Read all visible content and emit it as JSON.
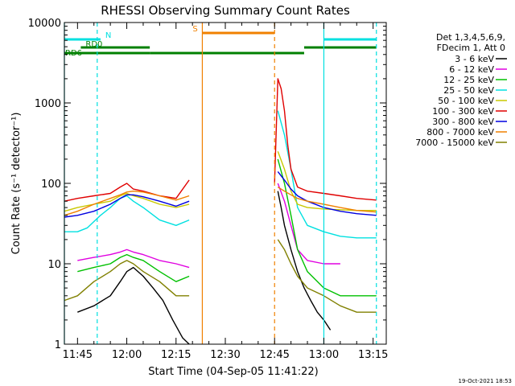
{
  "chart_data": {
    "type": "line",
    "title": "RHESSI Observing Summary Count Rates",
    "xlabel": "Start Time (04-Sep-05 11:41:22)",
    "ylabel": "Count Rate (s⁻¹ detector⁻¹)",
    "yscale": "log",
    "xlim": [
      "11:41",
      "13:19"
    ],
    "ylim": [
      1,
      10000
    ],
    "xticks": [
      "11:45",
      "12:00",
      "12:15",
      "12:30",
      "12:45",
      "13:00",
      "13:15"
    ],
    "yticks": [
      "1",
      "10",
      "100",
      "1000",
      "10000"
    ],
    "legend": {
      "header": [
        "Det 1,3,4,5,6,9,",
        "FDecim 1, Att 0"
      ],
      "placement": "right"
    },
    "series": [
      {
        "name": "3 - 6 keV",
        "color": "#000000",
        "segments": [
          {
            "x": [
              "11:45",
              "11:50",
              "11:55",
              "11:58",
              "12:00",
              "12:02",
              "12:05",
              "12:08",
              "12:11",
              "12:14",
              "12:17",
              "12:19"
            ],
            "y": [
              2.5,
              3,
              4,
              6,
              8,
              9,
              7,
              5,
              3.5,
              2,
              1.2,
              1
            ]
          },
          {
            "x": [
              "12:46",
              "12:47",
              "12:48",
              "12:50",
              "12:52",
              "12:54",
              "12:56",
              "12:58",
              "13:00",
              "13:02"
            ],
            "y": [
              80,
              50,
              30,
              15,
              8,
              5,
              3.5,
              2.5,
              2,
              1.5
            ]
          }
        ]
      },
      {
        "name": "6 - 12 keV",
        "color": "#e000e0",
        "segments": [
          {
            "x": [
              "11:45",
              "11:50",
              "11:55",
              "11:58",
              "12:00",
              "12:02",
              "12:05",
              "12:10",
              "12:15",
              "12:19"
            ],
            "y": [
              11,
              12,
              13,
              14,
              15,
              14,
              13,
              11,
              10,
              9
            ]
          },
          {
            "x": [
              "12:46",
              "12:48",
              "12:50",
              "12:52",
              "12:55",
              "13:00",
              "13:05"
            ],
            "y": [
              100,
              60,
              30,
              15,
              11,
              10,
              10
            ]
          }
        ]
      },
      {
        "name": "12 - 25 keV",
        "color": "#00c000",
        "segments": [
          {
            "x": [
              "11:45",
              "11:50",
              "11:55",
              "11:58",
              "12:00",
              "12:02",
              "12:05",
              "12:10",
              "12:15",
              "12:19"
            ],
            "y": [
              8,
              9,
              10,
              12,
              13,
              12,
              11,
              8,
              6,
              7
            ]
          },
          {
            "x": [
              "12:46",
              "12:48",
              "12:50",
              "12:52",
              "12:55",
              "13:00",
              "13:05",
              "13:10",
              "13:16"
            ],
            "y": [
              200,
              100,
              40,
              15,
              8,
              5,
              4,
              4,
              4
            ]
          }
        ]
      },
      {
        "name": "25 - 50 keV",
        "color": "#00e0e0",
        "segments": [
          {
            "x": [
              "11:41",
              "11:45",
              "11:48",
              "11:52",
              "11:55",
              "11:58",
              "12:00",
              "12:02",
              "12:05",
              "12:10",
              "12:15",
              "12:19"
            ],
            "y": [
              25,
              25,
              28,
              40,
              50,
              65,
              70,
              60,
              50,
              35,
              30,
              35
            ]
          },
          {
            "x": [
              "12:46",
              "12:48",
              "12:50",
              "12:52",
              "12:55",
              "13:00",
              "13:05",
              "13:10",
              "13:16"
            ],
            "y": [
              800,
              400,
              150,
              50,
              30,
              25,
              22,
              21,
              21
            ]
          }
        ]
      },
      {
        "name": "50 - 100 keV",
        "color": "#c8c800",
        "segments": [
          {
            "x": [
              "11:41",
              "11:45",
              "11:50",
              "11:55",
              "11:58",
              "12:00",
              "12:02",
              "12:05",
              "12:10",
              "12:15",
              "12:19"
            ],
            "y": [
              45,
              50,
              55,
              60,
              70,
              75,
              70,
              65,
              55,
              50,
              55
            ]
          },
          {
            "x": [
              "12:46",
              "12:48",
              "12:50",
              "12:52",
              "12:55",
              "13:00",
              "13:05",
              "13:10",
              "13:16"
            ],
            "y": [
              250,
              150,
              80,
              55,
              50,
              48,
              47,
              46,
              46
            ]
          }
        ]
      },
      {
        "name": "100 - 300 keV",
        "color": "#e00000",
        "segments": [
          {
            "x": [
              "11:41",
              "11:45",
              "11:50",
              "11:55",
              "11:58",
              "12:00",
              "12:02",
              "12:05",
              "12:10",
              "12:15",
              "12:19"
            ],
            "y": [
              60,
              65,
              70,
              75,
              90,
              100,
              85,
              80,
              70,
              65,
              110
            ]
          },
          {
            "x": [
              "12:45",
              "12:46",
              "12:47",
              "12:48",
              "12:49",
              "12:50",
              "12:52",
              "12:55",
              "13:00",
              "13:05",
              "13:10",
              "13:16"
            ],
            "y": [
              100,
              2000,
              1500,
              800,
              300,
              150,
              90,
              80,
              75,
              70,
              65,
              62
            ]
          }
        ]
      },
      {
        "name": "300 - 800 keV",
        "color": "#0000e0",
        "segments": [
          {
            "x": [
              "11:41",
              "11:45",
              "11:50",
              "11:55",
              "11:58",
              "12:00",
              "12:02",
              "12:05",
              "12:10",
              "12:15",
              "12:19"
            ],
            "y": [
              38,
              40,
              45,
              55,
              65,
              72,
              72,
              68,
              60,
              52,
              60
            ]
          },
          {
            "x": [
              "12:46",
              "12:48",
              "12:50",
              "12:52",
              "12:55",
              "13:00",
              "13:05",
              "13:10",
              "13:16"
            ],
            "y": [
              140,
              110,
              85,
              70,
              60,
              50,
              45,
              42,
              40
            ]
          }
        ]
      },
      {
        "name": "800 - 7000 keV",
        "color": "#f08000",
        "segments": [
          {
            "x": [
              "11:41",
              "11:45",
              "11:50",
              "11:55",
              "11:58",
              "12:00",
              "12:02",
              "12:05",
              "12:10",
              "12:15",
              "12:19"
            ],
            "y": [
              40,
              45,
              55,
              65,
              72,
              78,
              80,
              78,
              70,
              62,
              70
            ]
          },
          {
            "x": [
              "12:46",
              "12:48",
              "12:50",
              "12:52",
              "12:55",
              "13:00",
              "13:05",
              "13:10",
              "13:16"
            ],
            "y": [
              90,
              80,
              72,
              65,
              60,
              55,
              50,
              46,
              44
            ]
          }
        ]
      },
      {
        "name": "7000 - 15000 keV",
        "color": "#808000",
        "segments": [
          {
            "x": [
              "11:41",
              "11:45",
              "11:50",
              "11:55",
              "11:58",
              "12:00",
              "12:02",
              "12:05",
              "12:10",
              "12:15",
              "12:19"
            ],
            "y": [
              3.5,
              4,
              6,
              8,
              10,
              11,
              10,
              8,
              6,
              4,
              4
            ]
          },
          {
            "x": [
              "12:46",
              "12:48",
              "12:50",
              "12:52",
              "12:55",
              "13:00",
              "13:05",
              "13:10",
              "13:16"
            ],
            "y": [
              20,
              15,
              10,
              7,
              5,
              4,
              3,
              2.5,
              2.5
            ]
          }
        ]
      }
    ],
    "annotations": {
      "flags": [
        {
          "label": "N",
          "color": "#00e0e0",
          "segments": [
            [
              "11:41",
              "11:52"
            ],
            [
              "13:00",
              "13:16"
            ]
          ]
        },
        {
          "label": "S",
          "color": "#f08000",
          "segments": [
            [
              "12:23",
              "12:45"
            ]
          ]
        },
        {
          "label": "RD0",
          "color": "#008000",
          "segments": [
            [
              "11:46",
              "12:07"
            ],
            [
              "12:54",
              "13:16"
            ]
          ]
        },
        {
          "label": "RD6",
          "color": "#008000",
          "segments": [
            [
              "11:41",
              "12:07"
            ],
            [
              "12:07",
              "12:45"
            ],
            [
              "12:45",
              "12:54"
            ]
          ]
        }
      ],
      "vlines": [
        {
          "x": "11:41",
          "color": "#00e0e0",
          "style": "solid"
        },
        {
          "x": "11:51",
          "color": "#00e0e0",
          "style": "dashed"
        },
        {
          "x": "12:23",
          "color": "#f08000",
          "style": "solid"
        },
        {
          "x": "12:45",
          "color": "#f08000",
          "style": "dashed"
        },
        {
          "x": "13:00",
          "color": "#00e0e0",
          "style": "solid"
        },
        {
          "x": "13:16",
          "color": "#00e0e0",
          "style": "dashed"
        }
      ]
    },
    "footer_timestamp": "19-Oct-2021 18:53"
  }
}
